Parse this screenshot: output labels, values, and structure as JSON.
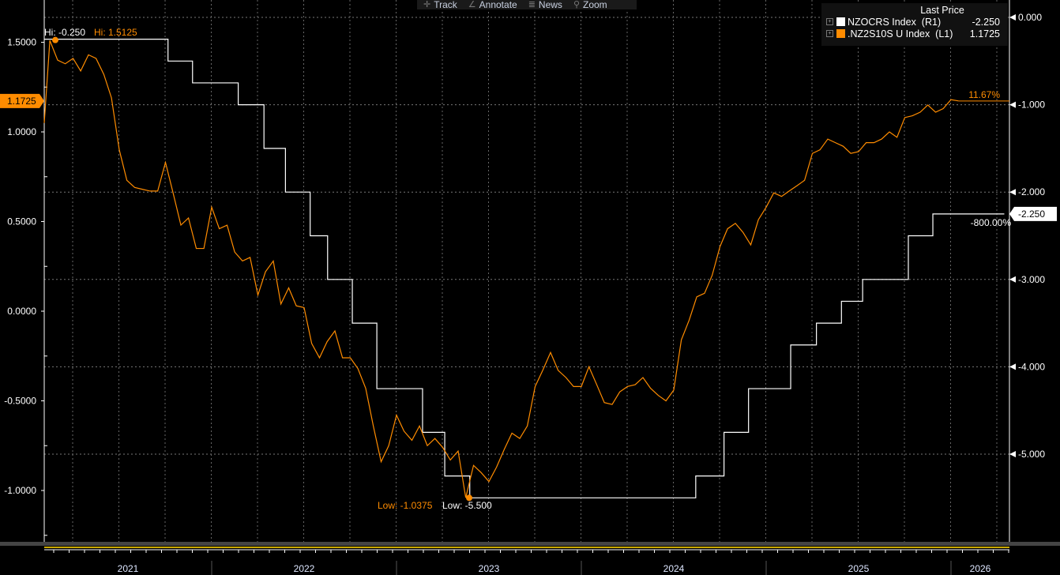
{
  "toolbar": {
    "items": [
      {
        "icon": "crosshair-icon",
        "label": "Track"
      },
      {
        "icon": "pencil-icon",
        "label": "Annotate"
      },
      {
        "icon": "news-icon",
        "label": "News"
      },
      {
        "icon": "magnifier-icon",
        "label": "Zoom"
      }
    ]
  },
  "legend": {
    "header": "Last Price",
    "entries": [
      {
        "name": "NZOCRS Index",
        "axis": "(R1)",
        "last": "-2.250",
        "color": "#ffffff"
      },
      {
        "name": ".NZ2S10S U Index",
        "axis": "(L1)",
        "last": "1.1725",
        "color": "#ff8c00"
      }
    ]
  },
  "colors": {
    "background": "#000000",
    "ocr": "#ffffff",
    "spread": "#ff8c00",
    "grid": "#888888"
  },
  "chart_data": {
    "type": "line",
    "x_axis": {
      "type": "date",
      "range": [
        "2021-02-01",
        "2026-04-15"
      ],
      "tick_labels": [
        "2021",
        "2022",
        "2023",
        "2024",
        "2025",
        "2026"
      ]
    },
    "left_axis": {
      "range": [
        -1.3,
        1.65
      ],
      "tick_labels": [
        "1.5000",
        "1.0000",
        "0.5000",
        "0.0000",
        "-0.5000",
        "-1.0000"
      ],
      "ticks": [
        1.5,
        1.0,
        0.5,
        0.0,
        -0.5,
        -1.0
      ]
    },
    "right_axis": {
      "range": [
        -6.0,
        0.0
      ],
      "tick_labels": [
        "0.000",
        "-1.000",
        "-2.000",
        "-3.000",
        "-4.000",
        "-5.000"
      ],
      "ticks": [
        0,
        -1,
        -2,
        -3,
        -4,
        -5
      ]
    },
    "grid": true,
    "legend_placement": "top-right",
    "series": [
      {
        "name": "NZOCRS Index",
        "axis": "right",
        "step": true,
        "x": [
          "2021-02-01",
          "2021-10-06",
          "2021-11-24",
          "2022-02-23",
          "2022-04-13",
          "2022-05-25",
          "2022-07-13",
          "2022-08-17",
          "2022-10-05",
          "2022-11-23",
          "2023-02-22",
          "2023-04-05",
          "2023-05-24",
          "2024-08-14",
          "2024-10-09",
          "2024-11-27",
          "2025-02-19",
          "2025-04-09",
          "2025-05-28",
          "2025-07-09",
          "2025-10-08",
          "2025-11-26",
          "2026-04-15"
        ],
        "y": [
          -0.25,
          -0.5,
          -0.75,
          -1.0,
          -1.5,
          -2.0,
          -2.5,
          -3.0,
          -3.5,
          -4.25,
          -4.75,
          -5.25,
          -5.5,
          -5.25,
          -4.75,
          -4.25,
          -3.75,
          -3.5,
          -3.25,
          -3.0,
          -2.5,
          -2.25,
          -2.25
        ],
        "hi_label": "Hi: -0.250",
        "low_label": "Low: -5.500",
        "change_label": "-800.00%",
        "last_tag": "-2.250"
      },
      {
        "name": ".NZ2S10S U Index",
        "axis": "left",
        "start": "2021-02-01",
        "frequency": "semi-monthly",
        "y": [
          1.05,
          1.51,
          1.4,
          1.38,
          1.41,
          1.34,
          1.43,
          1.41,
          1.32,
          1.19,
          0.9,
          0.73,
          0.69,
          0.68,
          0.67,
          0.67,
          0.83,
          0.66,
          0.48,
          0.52,
          0.35,
          0.35,
          0.58,
          0.46,
          0.48,
          0.33,
          0.28,
          0.3,
          0.09,
          0.22,
          0.28,
          0.04,
          0.13,
          0.03,
          0.02,
          -0.18,
          -0.26,
          -0.17,
          -0.11,
          -0.26,
          -0.26,
          -0.32,
          -0.43,
          -0.64,
          -0.84,
          -0.75,
          -0.58,
          -0.67,
          -0.72,
          -0.64,
          -0.75,
          -0.71,
          -0.76,
          -0.83,
          -0.78,
          -1.04,
          -0.86,
          -0.9,
          -0.95,
          -0.87,
          -0.77,
          -0.68,
          -0.71,
          -0.64,
          -0.42,
          -0.33,
          -0.23,
          -0.33,
          -0.37,
          -0.42,
          -0.42,
          -0.31,
          -0.41,
          -0.51,
          -0.52,
          -0.45,
          -0.42,
          -0.41,
          -0.37,
          -0.43,
          -0.47,
          -0.5,
          -0.44,
          -0.16,
          -0.05,
          0.08,
          0.1,
          0.2,
          0.36,
          0.46,
          0.49,
          0.44,
          0.37,
          0.51,
          0.58,
          0.66,
          0.64,
          0.67,
          0.7,
          0.73,
          0.88,
          0.9,
          0.96,
          0.94,
          0.92,
          0.88,
          0.89,
          0.94,
          0.94,
          0.96,
          1.0,
          0.97,
          1.08,
          1.09,
          1.11,
          1.15,
          1.11,
          1.13,
          1.18,
          1.1725
        ],
        "hi_label": "Hi: 1.5125",
        "low_label": "Low: -1.0375",
        "change_label": "11.67%",
        "last_tag": "1.1725"
      }
    ]
  }
}
